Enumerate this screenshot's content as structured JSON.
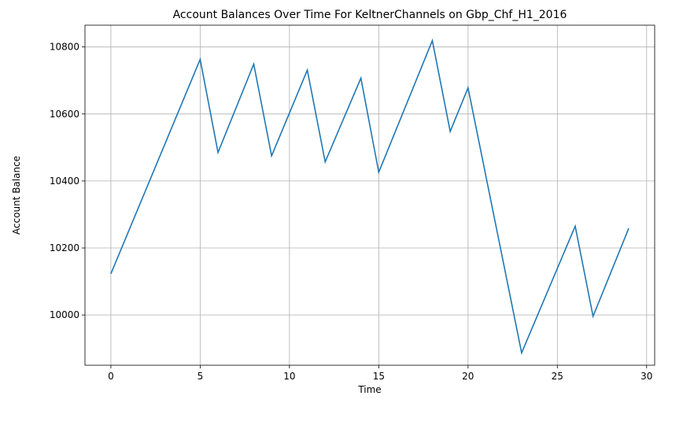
{
  "chart_data": {
    "type": "line",
    "title": "Account Balances Over Time For KeltnerChannels on Gbp_Chf_H1_2016",
    "xlabel": "Time",
    "ylabel": "Account Balance",
    "xlim": [
      -1.45,
      30.45
    ],
    "ylim": [
      9850,
      10865
    ],
    "xticks": [
      0,
      5,
      10,
      15,
      20,
      25,
      30
    ],
    "yticks": [
      10000,
      10200,
      10400,
      10600,
      10800
    ],
    "grid": true,
    "line_color": "#1f77b4",
    "series": [
      {
        "points": [
          [
            0,
            10123
          ],
          [
            5,
            10763
          ],
          [
            6,
            10485
          ],
          [
            8,
            10749
          ],
          [
            9,
            10475
          ],
          [
            11,
            10731
          ],
          [
            12,
            10457
          ],
          [
            14,
            10707
          ],
          [
            15,
            10426
          ],
          [
            18,
            10819
          ],
          [
            19,
            10548
          ],
          [
            20,
            10678
          ],
          [
            23,
            9887
          ],
          [
            26,
            10265
          ],
          [
            27,
            9996
          ],
          [
            29,
            10259
          ]
        ]
      }
    ]
  }
}
